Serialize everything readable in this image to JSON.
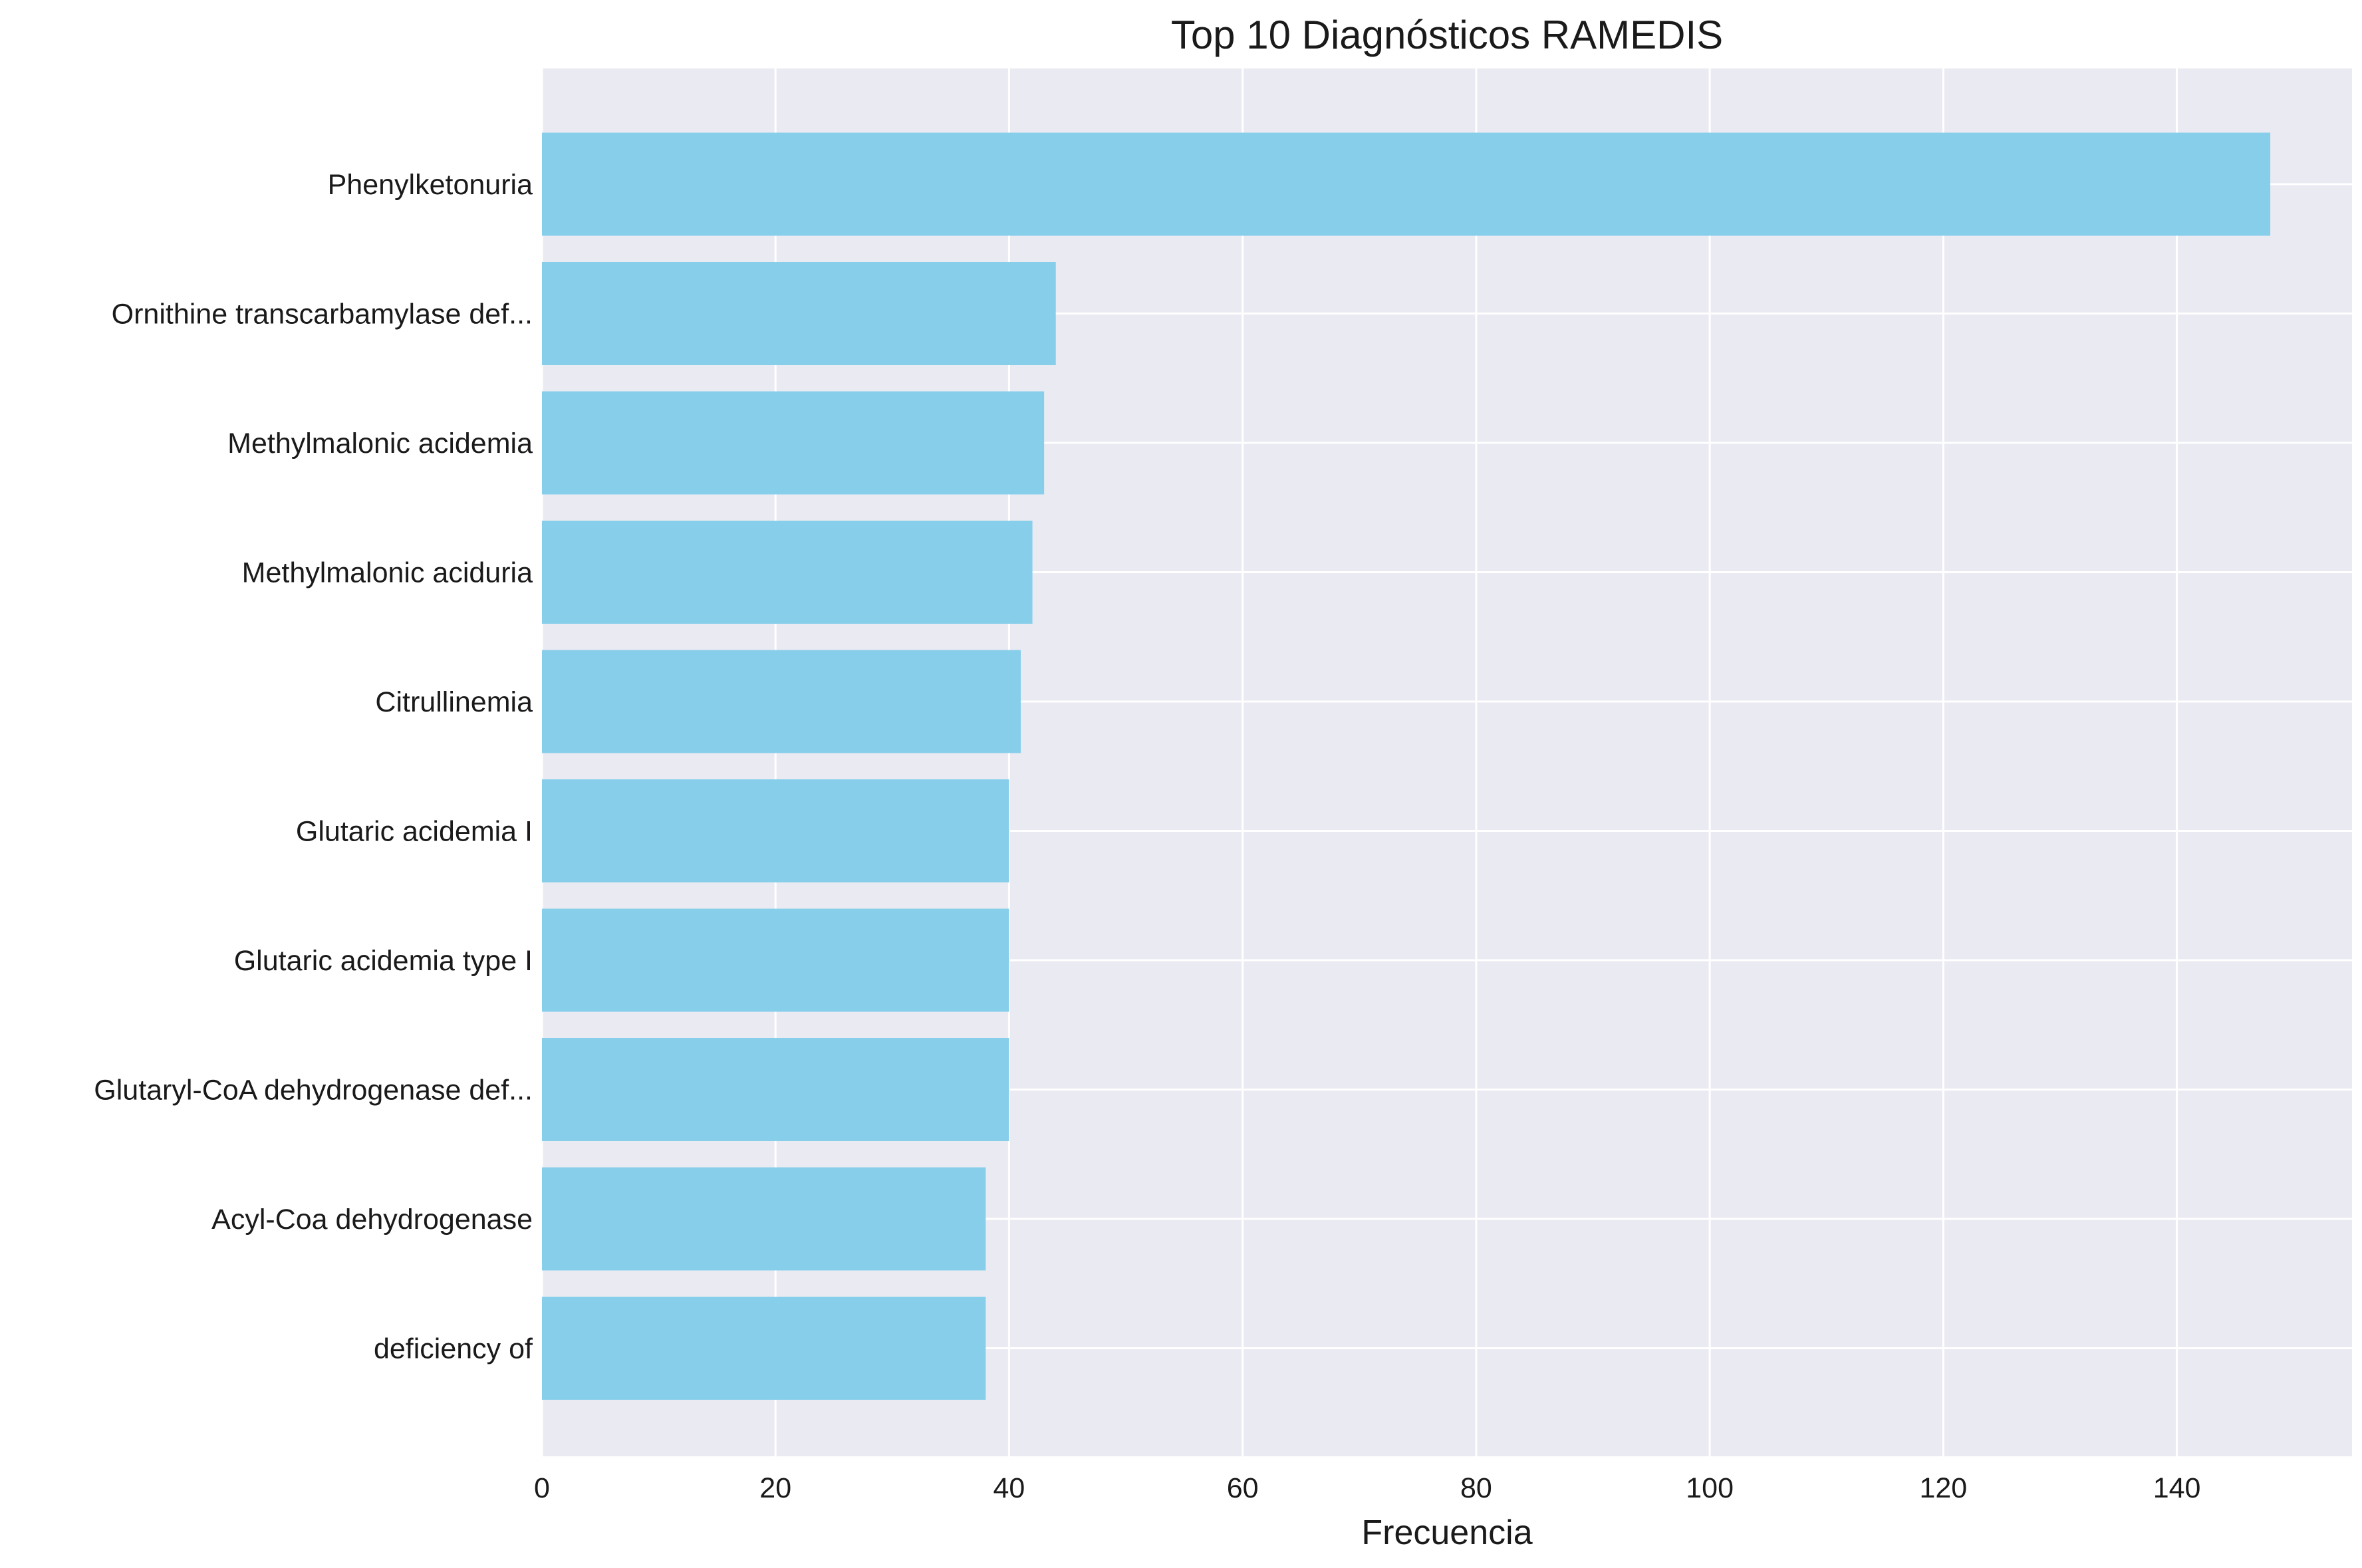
{
  "chart_data": {
    "type": "bar",
    "orientation": "horizontal",
    "title": "Top 10 Diagnósticos RAMEDIS",
    "xlabel": "Frecuencia",
    "ylabel": "",
    "xlim": [
      0,
      155
    ],
    "x_ticks": [
      0,
      20,
      40,
      60,
      80,
      100,
      120,
      140
    ],
    "grid": true,
    "categories": [
      "Phenylketonuria",
      "Ornithine transcarbamylase def...",
      "Methylmalonic acidemia",
      "Methylmalonic aciduria",
      "Citrullinemia",
      "Glutaric acidemia I",
      "Glutaric acidemia type I",
      "Glutaryl-CoA dehydrogenase def...",
      "Acyl-Coa dehydrogenase",
      "deficiency of"
    ],
    "values": [
      148,
      44,
      43,
      42,
      41,
      40,
      40,
      40,
      38,
      38
    ],
    "colors": {
      "bar": "#87CEEB",
      "plot_background": "#EAEAF2",
      "grid": "#FFFFFF",
      "text": "#1A1A1A"
    }
  }
}
